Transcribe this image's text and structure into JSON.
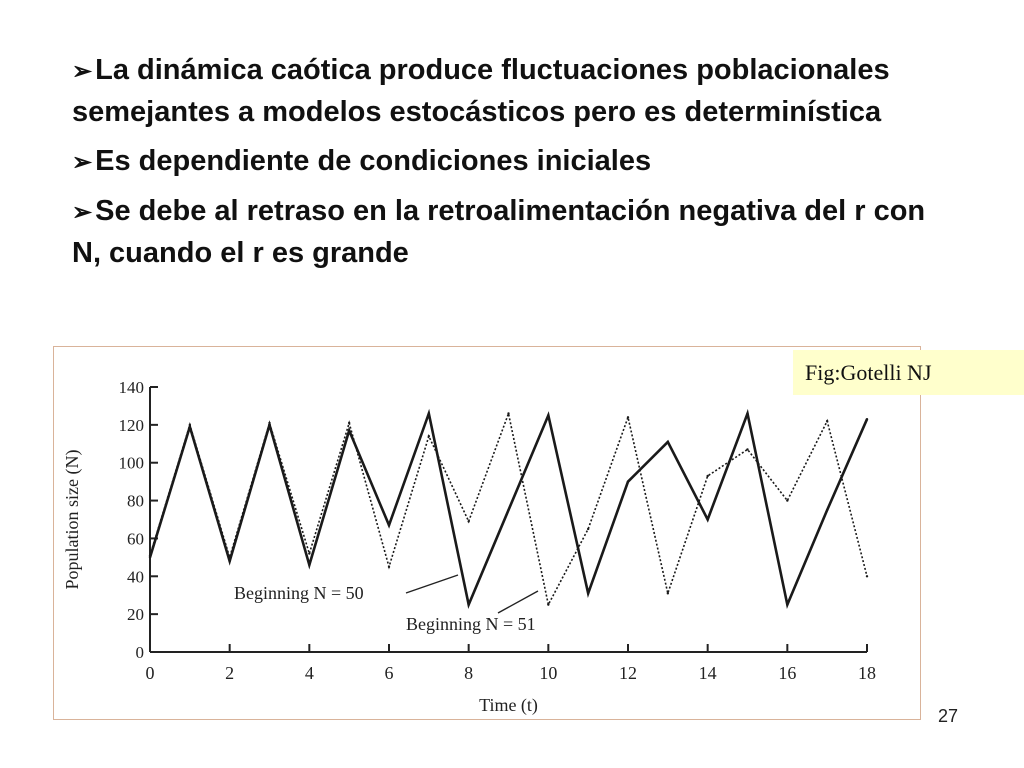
{
  "slide": {
    "bullets": [
      "La dinámica caótica produce fluctuaciones poblacionales semejantes a modelos estocásticos pero es determinística",
      "Es dependiente de condiciones iniciales",
      "Se debe al retraso en la retroalimentación negativa del r con N, cuando el r es grande"
    ],
    "credit": "Fig:Gotelli NJ",
    "page_number": "27"
  },
  "chart_data": {
    "type": "line",
    "xlabel": "Time (t)",
    "ylabel": "Population size (N)",
    "x": [
      0,
      1,
      2,
      3,
      4,
      5,
      6,
      7,
      8,
      9,
      10,
      11,
      12,
      13,
      14,
      15,
      16,
      17,
      18
    ],
    "xticks": [
      0,
      2,
      4,
      6,
      8,
      10,
      12,
      14,
      16,
      18
    ],
    "yticks": [
      0,
      20,
      40,
      60,
      80,
      100,
      120,
      140
    ],
    "xlim": [
      0,
      18
    ],
    "ylim": [
      0,
      140
    ],
    "grid": false,
    "series": [
      {
        "name": "Beginning N = 50",
        "style": "solid",
        "values": [
          50,
          119,
          48,
          120,
          46,
          117,
          67,
          126,
          25,
          75,
          125,
          31,
          90,
          111,
          70,
          126,
          25,
          75,
          123
        ]
      },
      {
        "name": "Beginning N = 51",
        "style": "dotted",
        "values": [
          51,
          120,
          50,
          121,
          52,
          121,
          45,
          114,
          69,
          126,
          25,
          65,
          124,
          31,
          93,
          107,
          80,
          122,
          40
        ]
      }
    ],
    "annotations": [
      "Beginning N = 50",
      "Beginning N = 51"
    ]
  }
}
